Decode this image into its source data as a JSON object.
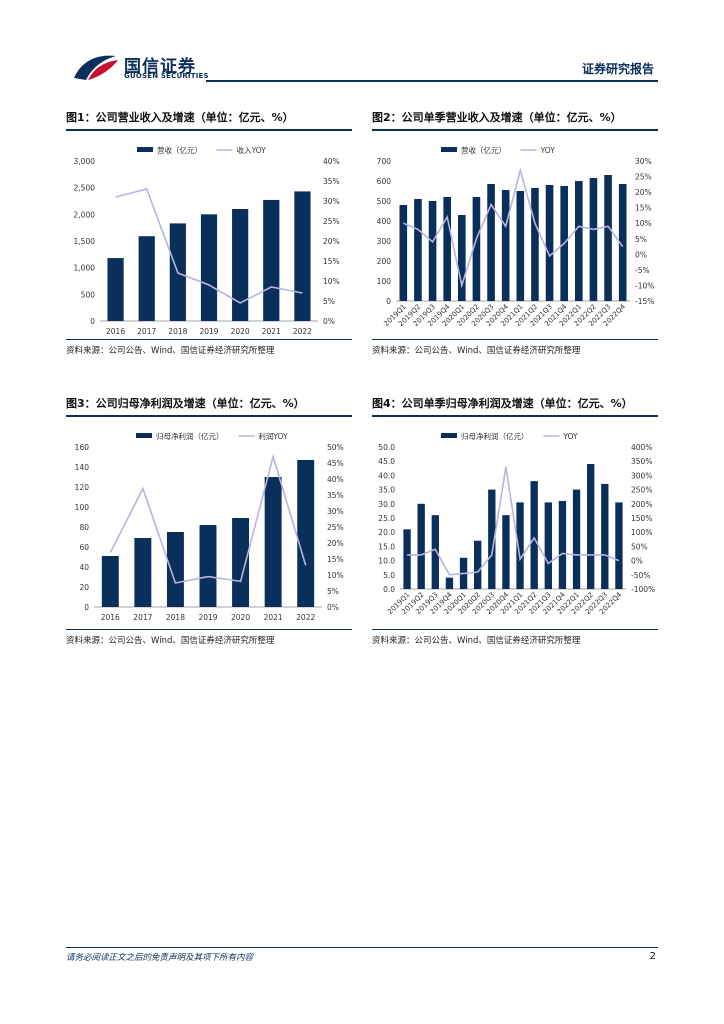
{
  "header": {
    "logo_cn": "国信证券",
    "logo_en": "GUOSEN SECURITIES",
    "report_type": "证券研究报告"
  },
  "colors": {
    "bar": "#0b2f5b",
    "line": "#b8b4df",
    "accent": "#0b2f5b"
  },
  "figures": [
    {
      "title": "图1：公司营业收入及增速（单位：亿元、%）",
      "source": "资料来源：公司公告、Wind、国信证券经济研究所整理"
    },
    {
      "title": "图2：公司单季营业收入及增速（单位：亿元、%）",
      "source": "资料来源：公司公告、Wind、国信证券经济研究所整理"
    },
    {
      "title": "图3：公司归母净利润及增速（单位：亿元、%）",
      "source": "资料来源：公司公告、Wind、国信证券经济研究所整理"
    },
    {
      "title": "图4：公司单季归母净利润及增速（单位：亿元、%）",
      "source": "资料来源：公司公告、Wind、国信证券经济研究所整理"
    }
  ],
  "chart_data": [
    {
      "type": "bar",
      "categories": [
        "2016",
        "2017",
        "2018",
        "2019",
        "2020",
        "2021",
        "2022"
      ],
      "series": [
        {
          "name": "营收（亿元）",
          "type": "bar",
          "axis": "left",
          "values": [
            1180,
            1590,
            1830,
            2000,
            2100,
            2270,
            2430
          ]
        },
        {
          "name": "收入YOY",
          "type": "line",
          "axis": "right",
          "values": [
            0.31,
            0.33,
            0.12,
            0.09,
            0.045,
            0.085,
            0.07
          ]
        }
      ],
      "ylim": [
        0,
        3000
      ],
      "yticks": [
        "0",
        "500",
        "1,000",
        "1,500",
        "2,000",
        "2,500",
        "3,000"
      ],
      "y2lim": [
        0,
        0.4
      ],
      "y2ticks": [
        "0%",
        "5%",
        "10%",
        "15%",
        "20%",
        "25%",
        "30%",
        "35%",
        "40%"
      ],
      "legend": "top",
      "grid": false
    },
    {
      "type": "bar",
      "categories": [
        "2019Q1",
        "2019Q2",
        "2019Q3",
        "2019Q4",
        "2020Q1",
        "2020Q2",
        "2020Q3",
        "2020Q4",
        "2021Q1",
        "2021Q2",
        "2021Q3",
        "2021Q4",
        "2022Q1",
        "2022Q2",
        "2022Q3",
        "2022Q4"
      ],
      "series": [
        {
          "name": "营收（亿元）",
          "type": "bar",
          "axis": "left",
          "values": [
            480,
            510,
            500,
            520,
            430,
            520,
            585,
            555,
            550,
            565,
            580,
            575,
            600,
            615,
            630,
            585
          ]
        },
        {
          "name": "YOY",
          "type": "line",
          "axis": "right",
          "values": [
            0.1,
            0.08,
            0.04,
            0.12,
            -0.1,
            0.05,
            0.16,
            0.09,
            0.27,
            0.1,
            -0.005,
            0.035,
            0.09,
            0.08,
            0.09,
            0.025
          ]
        }
      ],
      "ylim": [
        0,
        700
      ],
      "yticks": [
        "0",
        "100",
        "200",
        "300",
        "400",
        "500",
        "600",
        "700"
      ],
      "y2lim": [
        -0.15,
        0.3
      ],
      "y2ticks": [
        "-15%",
        "-10%",
        "-5%",
        "0%",
        "5%",
        "10%",
        "15%",
        "20%",
        "25%",
        "30%"
      ],
      "legend": "top",
      "grid": false
    },
    {
      "type": "bar",
      "categories": [
        "2016",
        "2017",
        "2018",
        "2019",
        "2020",
        "2021",
        "2022"
      ],
      "series": [
        {
          "name": "归母净利润（亿元）",
          "type": "bar",
          "axis": "left",
          "values": [
            51,
            69,
            75,
            82,
            89,
            130,
            147
          ]
        },
        {
          "name": "利润YOY",
          "type": "line",
          "axis": "right",
          "values": [
            0.17,
            0.37,
            0.075,
            0.095,
            0.08,
            0.47,
            0.13
          ]
        }
      ],
      "ylim": [
        0,
        160
      ],
      "yticks": [
        "0",
        "20",
        "40",
        "60",
        "80",
        "100",
        "120",
        "140",
        "160"
      ],
      "y2lim": [
        0,
        0.5
      ],
      "y2ticks": [
        "0%",
        "5%",
        "10%",
        "15%",
        "20%",
        "25%",
        "30%",
        "35%",
        "40%",
        "45%",
        "50%"
      ],
      "legend": "top",
      "grid": false
    },
    {
      "type": "bar",
      "categories": [
        "2019Q1",
        "2019Q2",
        "2019Q3",
        "2019Q4",
        "2020Q1",
        "2020Q2",
        "2020Q3",
        "2020Q4",
        "2021Q1",
        "2021Q2",
        "2021Q3",
        "2021Q4",
        "2022Q1",
        "2022Q2",
        "2022Q3",
        "2022Q4"
      ],
      "series": [
        {
          "name": "归母净利润（亿元）",
          "type": "bar",
          "axis": "left",
          "values": [
            21,
            30,
            26,
            4,
            11,
            17,
            35,
            26,
            30.5,
            38,
            30.5,
            31,
            35,
            44,
            37,
            30.5
          ]
        },
        {
          "name": "YOY",
          "type": "line",
          "axis": "right",
          "values": [
            0.2,
            0.2,
            0.4,
            -0.5,
            -0.45,
            -0.4,
            0.2,
            3.3,
            0.05,
            0.8,
            -0.1,
            0.25,
            0.2,
            0.2,
            0.2,
            0.0
          ]
        }
      ],
      "ylim": [
        0,
        50
      ],
      "yticks": [
        "0.0",
        "5.0",
        "10.0",
        "15.0",
        "20.0",
        "25.0",
        "30.0",
        "35.0",
        "40.0",
        "45.0",
        "50.0"
      ],
      "y2lim": [
        -1.0,
        4.0
      ],
      "y2ticks": [
        "-100%",
        "-50%",
        "0%",
        "50%",
        "100%",
        "150%",
        "200%",
        "250%",
        "300%",
        "350%",
        "400%"
      ],
      "legend": "top",
      "grid": false
    }
  ],
  "footer": {
    "disclaimer": "请务必阅读正文之后的免责声明及其项下所有内容",
    "page": "2"
  }
}
